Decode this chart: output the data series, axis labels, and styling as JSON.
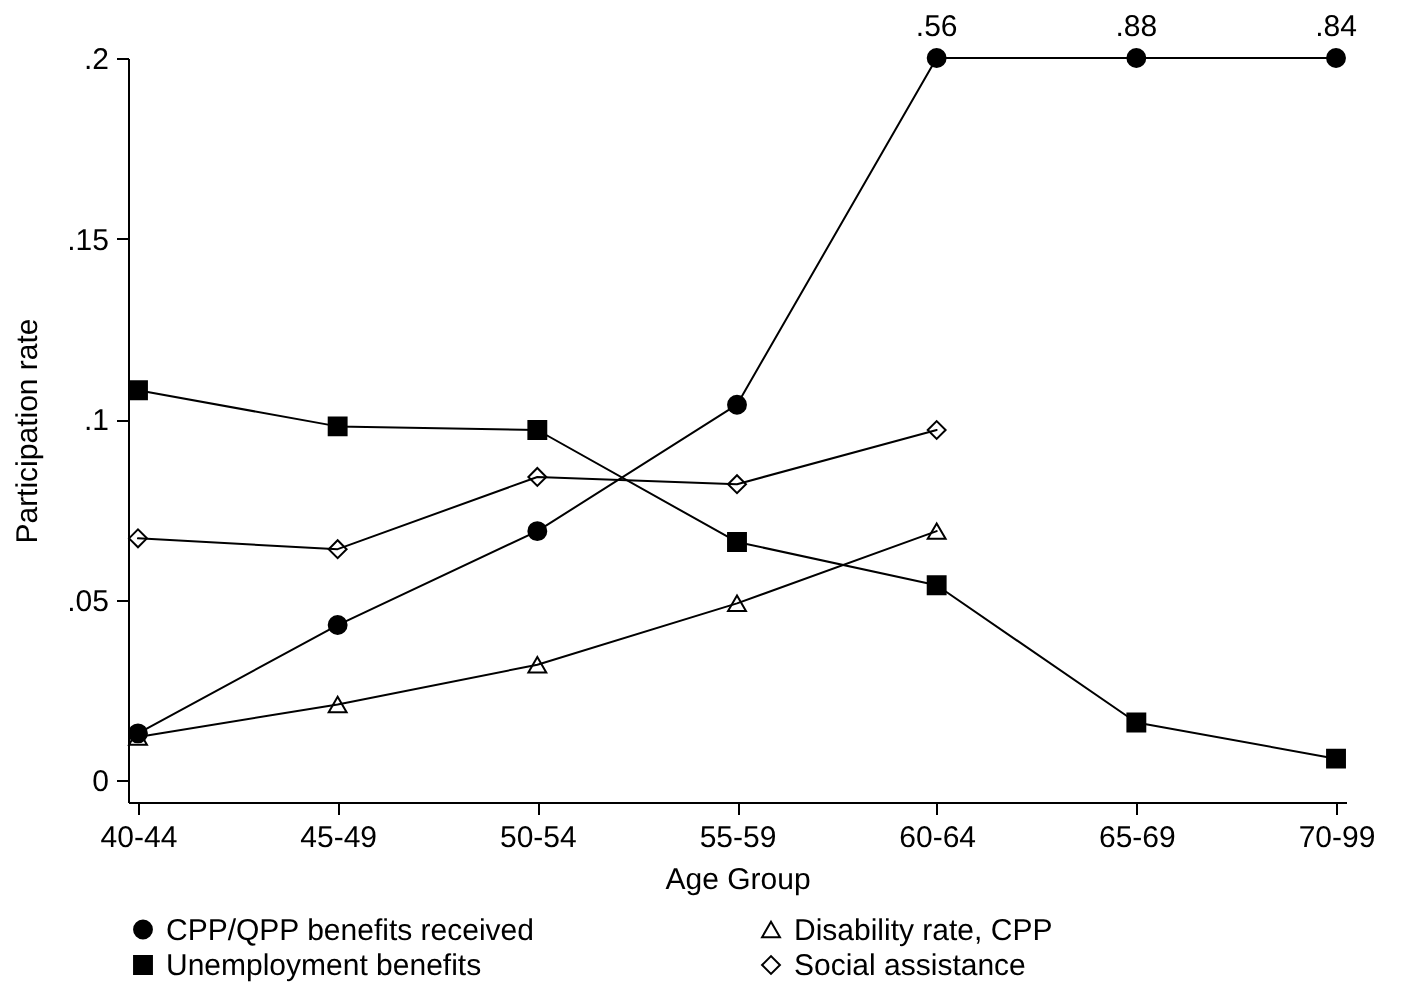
{
  "chart_data": {
    "type": "line",
    "xlabel": "Age Group",
    "ylabel": "Participation rate",
    "categories": [
      "40-44",
      "45-49",
      "50-54",
      "55-59",
      "60-64",
      "65-69",
      "70-99"
    ],
    "ylim": [
      -0.006,
      0.2
    ],
    "yticks": [
      0,
      {
        "value": 0.05,
        "label": ".05"
      },
      {
        "value": 0.1,
        "label": ".1"
      },
      {
        "value": 0.15,
        "label": ".15"
      },
      {
        "value": 0.2,
        "label": ".2"
      }
    ],
    "grid": false,
    "legend": "bottom",
    "line_style": "solid",
    "series": [
      {
        "name": "CPP/QPP benefits received",
        "color": "#000000",
        "marker": "circle",
        "values": [
          0.013,
          0.043,
          0.069,
          0.104,
          0.2,
          0.2,
          0.2
        ]
      },
      {
        "name": "Disability rate, CPP",
        "color": "#000000",
        "marker": "triangle",
        "values": [
          0.012,
          0.021,
          0.032,
          0.049,
          0.069,
          null,
          null
        ]
      },
      {
        "name": "Unemployment benefits",
        "color": "#000000",
        "marker": "square",
        "values": [
          0.108,
          0.098,
          0.097,
          0.066,
          0.054,
          0.016,
          0.006
        ]
      },
      {
        "name": "Social assistance",
        "color": "#000000",
        "marker": "diamond",
        "values": [
          0.067,
          0.064,
          0.084,
          0.082,
          0.097,
          null,
          null
        ]
      }
    ],
    "annotations": [
      {
        "text": ".56",
        "x": "60-64",
        "y": 0.2
      },
      {
        "text": ".88",
        "x": "65-69",
        "y": 0.2
      },
      {
        "text": ".84",
        "x": "70-99",
        "y": 0.2
      }
    ]
  }
}
